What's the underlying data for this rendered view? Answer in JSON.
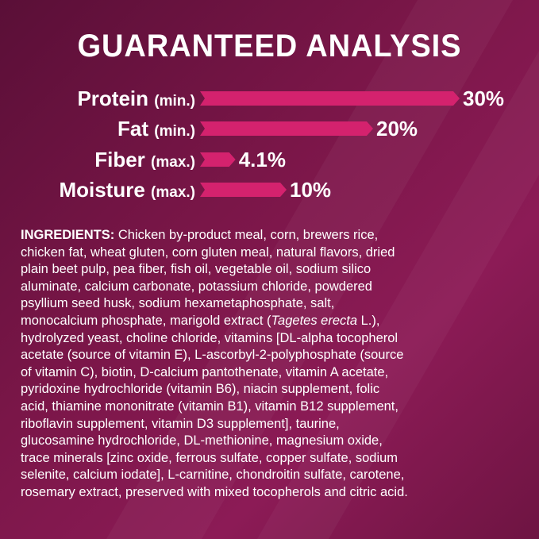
{
  "title": "GUARANTEED ANALYSIS",
  "colors": {
    "background": "#7a1648",
    "bar": "#d4226e",
    "text": "#ffffff"
  },
  "chart_data": {
    "type": "bar",
    "orientation": "horizontal",
    "title": "GUARANTEED ANALYSIS",
    "categories": [
      "Protein",
      "Fat",
      "Fiber",
      "Moisture"
    ],
    "qualifiers": [
      "(min.)",
      "(min.)",
      "(max.)",
      "(max.)"
    ],
    "values": [
      30,
      20,
      4.1,
      10
    ],
    "value_labels": [
      "30%",
      "20%",
      "4.1%",
      "10%"
    ],
    "grid": false
  },
  "ingredients": {
    "heading": "INGREDIENTS:",
    "lines": [
      " Chicken by-product meal, corn, brewers rice,",
      "chicken fat, wheat gluten, corn gluten meal, natural flavors, dried",
      "plain beet pulp, pea fiber, fish oil, vegetable oil, sodium silico",
      "aluminate, calcium carbonate, potassium chloride, powdered",
      "psyllium seed husk, sodium hexametaphosphate, salt,",
      "monocalcium phosphate, marigold extract (",
      "hydrolyzed yeast, choline chloride, vitamins [DL-alpha tocopherol",
      "acetate (source of vitamin E), L-ascorbyl-2-polyphosphate (source",
      "of vitamin C), biotin, D-calcium pantothenate, vitamin A acetate,",
      "pyridoxine hydrochloride (vitamin B6), niacin supplement, folic",
      "acid, thiamine mononitrate (vitamin B1), vitamin B12 supplement,",
      "riboflavin supplement, vitamin D3 supplement], taurine,",
      "glucosamine hydrochloride, DL-methionine, magnesium oxide,",
      "trace minerals [zinc oxide, ferrous sulfate, copper sulfate, sodium",
      "selenite, calcium iodate], L-carnitine, chondroitin sulfate, carotene,",
      "rosemary extract, preserved with mixed tocopherols and citric acid."
    ],
    "italic": "Tagetes erecta",
    "after_italic": " L.),"
  }
}
